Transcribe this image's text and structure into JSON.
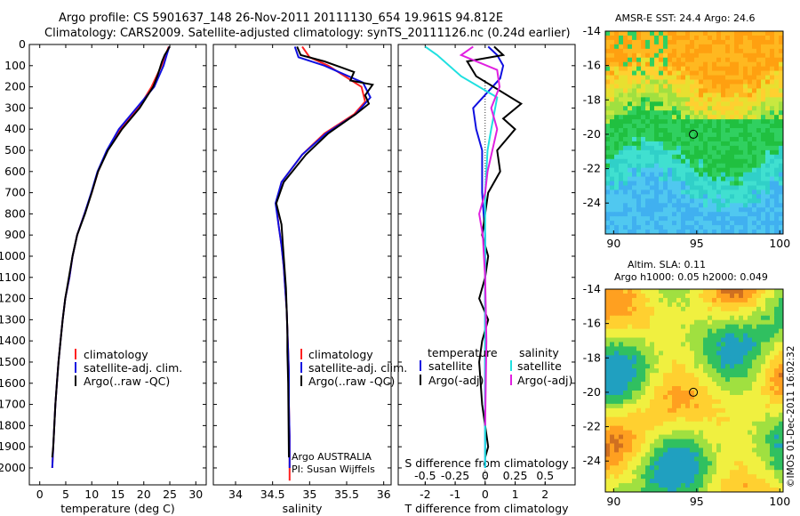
{
  "header": {
    "title_line1": "Argo profile: CS 5901637_148 26-Nov-2011 20111130_654 19.961S 94.812E",
    "title_line2": "Climatology: CARS2009. Satellite-adjusted climatology: synTS_20111126.nc (0.24d earlier)"
  },
  "colors": {
    "climatology": "#ff2020",
    "satellite": "#1010e0",
    "argo": "#000000",
    "salinity_satellite": "#20e0e0",
    "salinity_argo": "#e020e0"
  },
  "legends": {
    "climatology": "climatology",
    "satellite_adj": "satellite-adj. clim.",
    "argo_raw": "Argo(..raw -QC)",
    "temperature": "temperature",
    "salinity": "salinity",
    "satellite": "satellite",
    "argo_adj": "Argo(-adj)"
  },
  "float_info": {
    "line1": "Argo AUSTRALIA",
    "line2": "PI: Susan Wijffels"
  },
  "sst_map": {
    "title": "AMSR-E SST: 24.4 Argo: 24.6",
    "icon": "sst-colormap"
  },
  "sla_map": {
    "title_line1": "Altim. SLA: 0.11",
    "title_line2": "Argo h1000: 0.05 h2000: 0.049",
    "icon": "sla-colormap"
  },
  "credit": "©IMOS 01-Dec-2011 16:02:32",
  "chart_data": [
    {
      "id": "temperature",
      "type": "line",
      "xlabel": "temperature (deg C)",
      "ylabel": "",
      "xlim": [
        -2,
        32
      ],
      "ylim": [
        2080,
        0
      ],
      "xticks": [
        0,
        5,
        10,
        15,
        20,
        25,
        30
      ],
      "yticks": [
        0,
        100,
        200,
        300,
        400,
        500,
        600,
        700,
        800,
        900,
        1000,
        1100,
        1200,
        1300,
        1400,
        1500,
        1600,
        1700,
        1800,
        1900,
        2000
      ],
      "series": [
        {
          "name": "climatology",
          "color": "#ff2020",
          "x": [
            24.8,
            24.2,
            23.4,
            21.5,
            19.0,
            15.5,
            13.0,
            11.2,
            10.0,
            8.6,
            7.2,
            6.3,
            5.7,
            4.9,
            4.4,
            4.0,
            3.6,
            3.3,
            3.0,
            2.8,
            2.6,
            2.4
          ],
          "y": [
            10,
            50,
            100,
            200,
            300,
            400,
            500,
            600,
            700,
            800,
            900,
            1000,
            1100,
            1200,
            1300,
            1400,
            1500,
            1600,
            1700,
            1800,
            1900,
            2000
          ]
        },
        {
          "name": "satellite",
          "color": "#1010e0",
          "x": [
            24.9,
            24.4,
            23.8,
            22.0,
            18.6,
            15.2,
            12.9,
            11.1,
            9.9,
            8.6,
            7.2,
            6.3,
            5.7,
            4.9,
            4.4,
            4.0,
            3.6,
            3.3,
            3.0,
            2.8,
            2.6,
            2.4
          ],
          "y": [
            10,
            50,
            100,
            200,
            300,
            400,
            500,
            600,
            700,
            800,
            900,
            1000,
            1100,
            1200,
            1300,
            1400,
            1500,
            1600,
            1700,
            1800,
            1900,
            2000
          ]
        },
        {
          "name": "argo",
          "color": "#000000",
          "x": [
            25.0,
            24.0,
            23.5,
            22.6,
            21.8,
            19.2,
            15.8,
            13.1,
            11.2,
            10.0,
            8.7,
            7.2,
            6.3,
            5.6,
            4.9,
            4.4,
            4.0,
            3.6,
            3.3,
            3.0,
            2.8,
            2.6,
            2.4
          ],
          "y": [
            10,
            50,
            80,
            150,
            200,
            300,
            400,
            500,
            600,
            700,
            800,
            900,
            1000,
            1100,
            1200,
            1300,
            1400,
            1500,
            1600,
            1700,
            1800,
            1900,
            1950
          ]
        }
      ]
    },
    {
      "id": "salinity",
      "type": "line",
      "xlabel": "salinity",
      "xlim": [
        33.7,
        36.1
      ],
      "ylim": [
        2080,
        0
      ],
      "xticks": [
        34,
        34.5,
        35,
        35.5,
        36
      ],
      "xticklabels": [
        "34",
        "34.5",
        "35",
        "35.5",
        "36"
      ],
      "series": [
        {
          "name": "climatology",
          "color": "#ff2020",
          "x": [
            34.9,
            35.0,
            35.25,
            35.7,
            35.75,
            35.6,
            35.2,
            34.9,
            34.62,
            34.55,
            34.58,
            34.62,
            34.65,
            34.67,
            34.69,
            34.7,
            34.71,
            34.72,
            34.72,
            34.73,
            34.73,
            34.73
          ],
          "y": [
            10,
            60,
            100,
            200,
            270,
            330,
            420,
            520,
            650,
            750,
            850,
            950,
            1050,
            1150,
            1250,
            1350,
            1450,
            1550,
            1700,
            1850,
            2000,
            2060
          ]
        },
        {
          "name": "satellite",
          "color": "#1010e0",
          "x": [
            34.8,
            34.85,
            35.2,
            35.72,
            35.82,
            35.62,
            35.22,
            34.9,
            34.62,
            34.54,
            34.58,
            34.62,
            34.65,
            34.67,
            34.69,
            34.7,
            34.71,
            34.72,
            34.72,
            34.73,
            34.73
          ],
          "y": [
            10,
            60,
            100,
            180,
            250,
            330,
            420,
            520,
            650,
            750,
            850,
            950,
            1050,
            1150,
            1250,
            1350,
            1450,
            1550,
            1700,
            1850,
            2000
          ]
        },
        {
          "name": "argo",
          "color": "#000000",
          "x": [
            34.83,
            34.88,
            35.2,
            35.6,
            35.55,
            35.85,
            35.75,
            35.8,
            35.62,
            35.25,
            34.95,
            34.65,
            34.55,
            34.62,
            34.64,
            34.66,
            34.68,
            34.69,
            34.7,
            34.7,
            34.71,
            34.72
          ],
          "y": [
            10,
            50,
            80,
            130,
            170,
            190,
            240,
            280,
            330,
            420,
            520,
            650,
            750,
            850,
            950,
            1050,
            1150,
            1250,
            1350,
            1450,
            1600,
            1950
          ]
        }
      ]
    },
    {
      "id": "differences",
      "type": "line",
      "xlabel": "T difference from climatology",
      "xlabel_top": "S difference from climatology",
      "xlim": [
        -2.9,
        3.0
      ],
      "ylim": [
        2080,
        0
      ],
      "xticks": [
        -2,
        -1,
        0,
        1,
        2
      ],
      "xticklabels": [
        "-2",
        "-1",
        "0",
        "1",
        "2"
      ],
      "sticks": [
        -0.5,
        -0.25,
        0,
        0.25,
        0.5
      ],
      "sticklabels": [
        "-0.5",
        "-0.25",
        "0",
        "0.25",
        "0.5"
      ],
      "series": [
        {
          "name": "temperature satellite",
          "color": "#1010e0",
          "x": [
            0.1,
            0.4,
            0.6,
            0.5,
            -0.4,
            -0.3,
            -0.1,
            -0.1,
            0.0,
            0.0,
            0.0,
            0.0,
            0.0
          ],
          "y": [
            10,
            50,
            100,
            160,
            300,
            400,
            500,
            700,
            900,
            1200,
            1500,
            1800,
            2000
          ]
        },
        {
          "name": "temperature argo",
          "color": "#000000",
          "x": [
            0.3,
            0.6,
            -0.6,
            -0.3,
            1.2,
            0.6,
            1.0,
            0.4,
            0.5,
            0.1,
            0.0,
            -0.1,
            0.1,
            0.0,
            -0.2,
            0.1,
            -0.1,
            -0.2,
            -0.1,
            0.1,
            0.0
          ],
          "y": [
            10,
            50,
            80,
            150,
            280,
            350,
            400,
            500,
            600,
            700,
            800,
            900,
            1000,
            1100,
            1200,
            1300,
            1400,
            1500,
            1700,
            1900,
            1950
          ]
        },
        {
          "name": "salinity satellite",
          "color": "#20e0e0",
          "x": [
            -0.5,
            -0.4,
            -0.2,
            0.1,
            0.05,
            0.02,
            0.0,
            0.0,
            0.0,
            0.0,
            0.0
          ],
          "y": [
            10,
            50,
            150,
            250,
            400,
            500,
            700,
            900,
            1200,
            1600,
            2000
          ]
        },
        {
          "name": "salinity argo",
          "color": "#e020e0",
          "x": [
            -0.1,
            -0.2,
            0.1,
            0.12,
            0.05,
            0.1,
            0.02,
            0.0,
            -0.05,
            -0.02,
            0.0,
            0.01,
            0.0
          ],
          "y": [
            10,
            50,
            120,
            200,
            300,
            400,
            600,
            700,
            800,
            900,
            1100,
            1400,
            1800
          ]
        }
      ]
    },
    {
      "id": "sst_map",
      "type": "heatmap",
      "xlim": [
        89.5,
        100.2
      ],
      "ylim": [
        -25.8,
        -14
      ],
      "xticks": [
        90,
        95,
        100
      ],
      "yticks": [
        -14,
        -16,
        -18,
        -20,
        -22,
        -24
      ],
      "point": {
        "x": 94.8,
        "y": -20.0
      }
    },
    {
      "id": "sla_map",
      "type": "heatmap",
      "xlim": [
        89.5,
        100.2
      ],
      "ylim": [
        -25.8,
        -14
      ],
      "xticks": [
        90,
        95,
        100
      ],
      "yticks": [
        -14,
        -16,
        -18,
        -20,
        -22,
        -24
      ],
      "point": {
        "x": 94.8,
        "y": -20.0
      }
    }
  ]
}
